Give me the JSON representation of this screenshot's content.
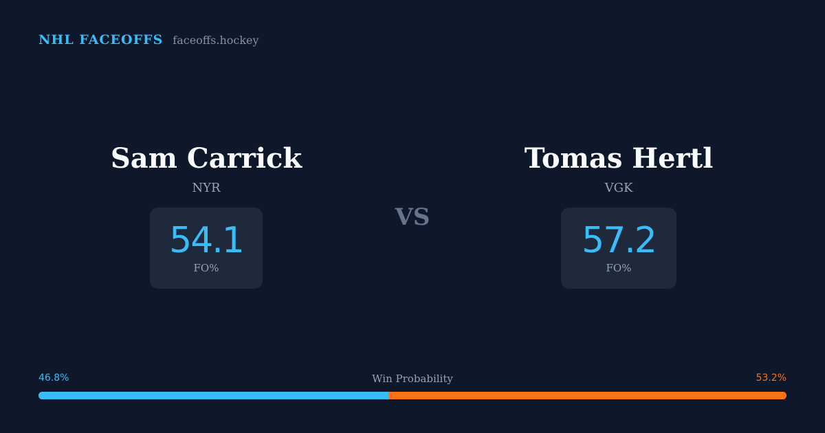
{
  "header": {
    "brand": "NHL FACEOFFS",
    "site": "faceoffs.hockey"
  },
  "players": [
    {
      "name": "Sam Carrick",
      "team": "NYR",
      "fo_pct": "54.1",
      "stat_label": "FO%"
    },
    {
      "name": "Tomas Hertl",
      "team": "VGK",
      "fo_pct": "57.2",
      "stat_label": "FO%"
    }
  ],
  "vs_label": "VS",
  "win_probability": {
    "title": "Win Probability",
    "left_label": "46.8%",
    "right_label": "53.2%",
    "left_value": 46.8,
    "right_value": 53.2
  },
  "colors": {
    "background": "#0f172a",
    "accent_blue": "#38bdf8",
    "accent_orange": "#f97316",
    "card": "#1e293b"
  }
}
